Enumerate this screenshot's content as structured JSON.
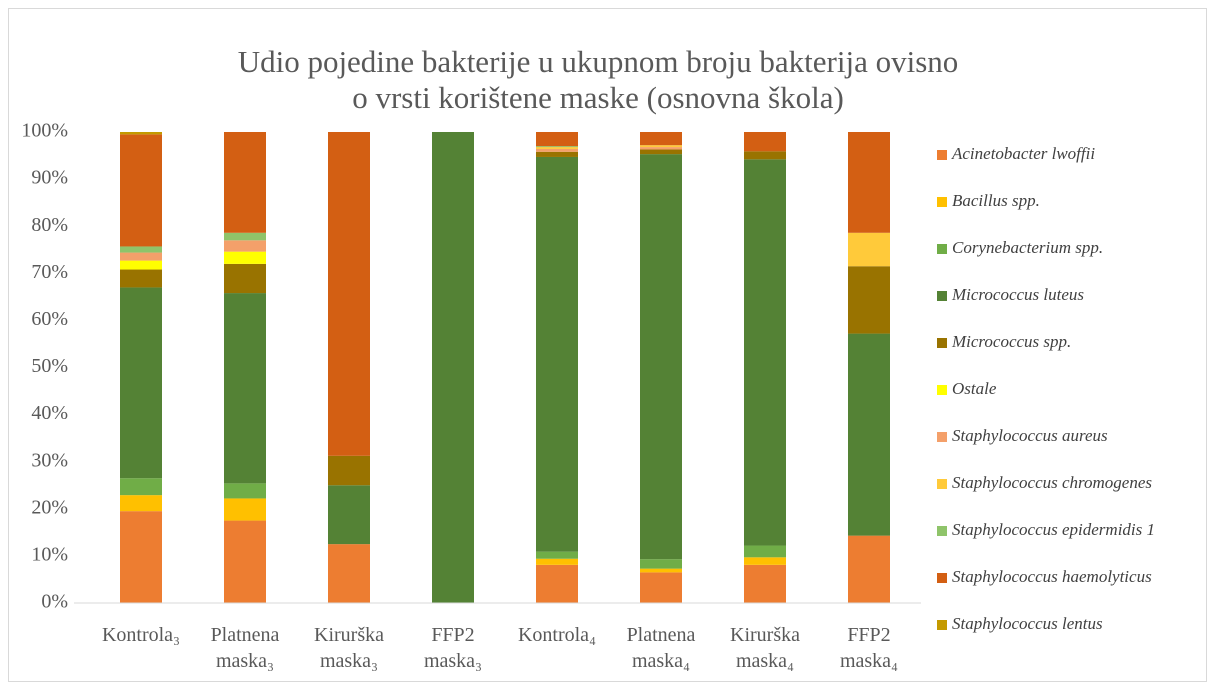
{
  "chart_data": {
    "type": "stacked_bar",
    "title": "Udio pojedine bakterije u ukupnom broju bakterija ovisno o vrsti korištene maske (osnovna škola)",
    "categories": [
      "Kontrola₃",
      "Platnena maska₃",
      "Kirurška maska₃",
      "FFP2 maska₃",
      "Kontrola₄",
      "Platnena maska₄",
      "Kirurška maska₄",
      "FFP2 maska₄"
    ],
    "series": [
      {
        "name": "Acinetobacter lwoffii",
        "color": "#ed7d31",
        "values": [
          19.5,
          17.5,
          12.5,
          0,
          8.1,
          6.5,
          8.1,
          14.3
        ]
      },
      {
        "name": "Bacillus spp.",
        "color": "#ffc000",
        "values": [
          3.4,
          4.7,
          0,
          0,
          1.3,
          0.8,
          1.6,
          0
        ]
      },
      {
        "name": "Corynebacterium spp.",
        "color": "#70ad47",
        "values": [
          3.6,
          3.2,
          0,
          0,
          1.5,
          2.0,
          2.5,
          0
        ]
      },
      {
        "name": "Micrococcus luteus",
        "color": "#548235",
        "values": [
          40.5,
          40.4,
          12.5,
          100,
          83.8,
          86.0,
          82.0,
          42.9
        ]
      },
      {
        "name": "Micrococcus spp.",
        "color": "#997300",
        "values": [
          3.8,
          6.2,
          6.25,
          0,
          1.1,
          1.0,
          1.7,
          14.3
        ]
      },
      {
        "name": "Ostale",
        "color": "#ffff00",
        "values": [
          1.9,
          2.6,
          0,
          0,
          0,
          0,
          0,
          0
        ]
      },
      {
        "name": "Staphylococcus aureus",
        "color": "#f4a06a",
        "values": [
          1.7,
          2.4,
          0,
          0,
          0.6,
          0.5,
          0,
          0
        ]
      },
      {
        "name": "Staphylococcus chromogenes",
        "color": "#ffca3a",
        "values": [
          0,
          0,
          0,
          0,
          0.4,
          0.4,
          0,
          7.1
        ]
      },
      {
        "name": "Staphylococcus epidermidis 1",
        "color": "#8fc46a",
        "values": [
          1.3,
          1.6,
          0,
          0,
          0.2,
          0,
          0,
          0
        ]
      },
      {
        "name": "Staphylococcus haemolyticus",
        "color": "#d35f13",
        "values": [
          23.8,
          21.4,
          68.75,
          0,
          3.0,
          2.8,
          4.1,
          21.4
        ]
      },
      {
        "name": "Staphylococcus lentus",
        "color": "#c49a00",
        "values": [
          0.5,
          0,
          0,
          0,
          0,
          0,
          0,
          0
        ]
      }
    ],
    "ylim": [
      0,
      100
    ],
    "yticks": [
      {
        "value": 0,
        "label": "0%"
      },
      {
        "value": 10,
        "label": "10%"
      },
      {
        "value": 20,
        "label": "20%"
      },
      {
        "value": 30,
        "label": "30%"
      },
      {
        "value": 40,
        "label": "40%"
      },
      {
        "value": 50,
        "label": "50%"
      },
      {
        "value": 60,
        "label": "60%"
      },
      {
        "value": 70,
        "label": "70%"
      },
      {
        "value": 80,
        "label": "80%"
      },
      {
        "value": 90,
        "label": "90%"
      },
      {
        "value": 100,
        "label": "100%"
      }
    ],
    "legend": "right"
  }
}
